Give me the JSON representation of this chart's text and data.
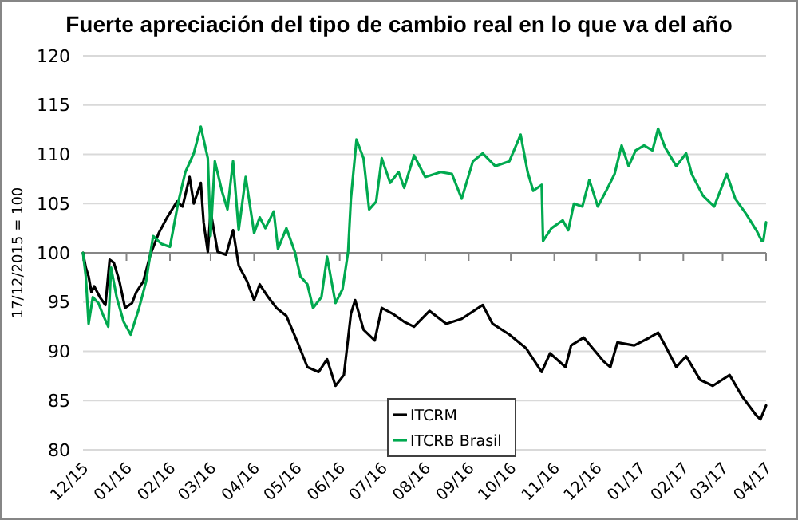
{
  "chart_data": {
    "type": "line",
    "title": "Fuerte apreciación del tipo de cambio real en lo que va del año",
    "ylabel": "17/12/2015 = 100",
    "xlim": [
      "2015-12-17",
      "2017-04-17"
    ],
    "xticks": [
      {
        "value": "2015-12-17",
        "label": "12/15"
      },
      {
        "value": "2016-01-17",
        "label": "01/16"
      },
      {
        "value": "2016-02-17",
        "label": "02/16"
      },
      {
        "value": "2016-03-17",
        "label": "03/16"
      },
      {
        "value": "2016-04-17",
        "label": "04/16"
      },
      {
        "value": "2016-05-17",
        "label": "05/16"
      },
      {
        "value": "2016-06-17",
        "label": "06/16"
      },
      {
        "value": "2016-07-17",
        "label": "07/16"
      },
      {
        "value": "2016-08-17",
        "label": "08/16"
      },
      {
        "value": "2016-09-17",
        "label": "09/16"
      },
      {
        "value": "2016-10-17",
        "label": "10/16"
      },
      {
        "value": "2016-11-17",
        "label": "11/16"
      },
      {
        "value": "2016-12-17",
        "label": "12/16"
      },
      {
        "value": "2017-01-17",
        "label": "01/17"
      },
      {
        "value": "2017-02-17",
        "label": "02/17"
      },
      {
        "value": "2017-03-17",
        "label": "03/17"
      },
      {
        "value": "2017-04-17",
        "label": "04/17"
      }
    ],
    "ylim": [
      80,
      120
    ],
    "yticks": [
      80,
      85,
      90,
      95,
      100,
      105,
      110,
      115,
      120
    ],
    "grid": "y",
    "legend": "bottom",
    "marker": "none",
    "line_style": "solid",
    "ref_lines": [
      {
        "axis": "y",
        "value": 100,
        "color": "#868686"
      }
    ],
    "series": [
      {
        "name": "ITCRM",
        "color": "#000000",
        "x": [
          "2015-12-17",
          "2015-12-19",
          "2015-12-21",
          "2015-12-23",
          "2015-12-25",
          "2015-12-29",
          "2016-01-02",
          "2016-01-05",
          "2016-01-08",
          "2016-01-12",
          "2016-01-16",
          "2016-01-21",
          "2016-01-24",
          "2016-01-29",
          "2016-02-03",
          "2016-02-09",
          "2016-02-15",
          "2016-02-22",
          "2016-02-26",
          "2016-03-02",
          "2016-03-05",
          "2016-03-10",
          "2016-03-12",
          "2016-03-15",
          "2016-03-17",
          "2016-03-22",
          "2016-03-28",
          "2016-04-02",
          "2016-04-06",
          "2016-04-12",
          "2016-04-17",
          "2016-04-21",
          "2016-04-27",
          "2016-05-03",
          "2016-05-10",
          "2016-05-18",
          "2016-05-25",
          "2016-06-02",
          "2016-06-08",
          "2016-06-14",
          "2016-06-20",
          "2016-06-25",
          "2016-06-28",
          "2016-07-04",
          "2016-07-12",
          "2016-07-17",
          "2016-07-25",
          "2016-08-02",
          "2016-08-09",
          "2016-08-20",
          "2016-09-01",
          "2016-09-12",
          "2016-09-27",
          "2016-10-04",
          "2016-10-16",
          "2016-10-28",
          "2016-11-08",
          "2016-11-14",
          "2016-11-25",
          "2016-11-29",
          "2016-12-08",
          "2016-12-22",
          "2016-12-27",
          "2017-01-01",
          "2017-01-13",
          "2017-01-24",
          "2017-01-30",
          "2017-02-04",
          "2017-02-12",
          "2017-02-19",
          "2017-03-01",
          "2017-03-10",
          "2017-03-22",
          "2017-03-31",
          "2017-04-10",
          "2017-04-13",
          "2017-04-17"
        ],
        "values": [
          100,
          98.5,
          97.6,
          96,
          96.6,
          95.5,
          94.7,
          99.3,
          99,
          97.1,
          94.4,
          94.9,
          96,
          97.1,
          99.8,
          102,
          103.6,
          105.2,
          104.7,
          107.7,
          105,
          107.1,
          103.1,
          100.1,
          104.2,
          100.1,
          99.8,
          102.3,
          98.7,
          97.1,
          95.2,
          96.8,
          95.5,
          94.4,
          93.6,
          90.9,
          88.4,
          87.9,
          89.2,
          86.5,
          87.6,
          93.8,
          95.2,
          92.2,
          91.1,
          94.4,
          93.8,
          93,
          92.5,
          94.1,
          92.8,
          93.3,
          94.7,
          92.8,
          91.7,
          90.3,
          87.9,
          89.8,
          88.4,
          90.6,
          91.4,
          89,
          88.4,
          90.9,
          90.6,
          91.4,
          91.9,
          90.6,
          88.4,
          89.5,
          87.1,
          86.5,
          87.6,
          85.4,
          83.5,
          83.1,
          84.5
        ]
      },
      {
        "name": "ITCRB Brasil",
        "color": "#00a94f",
        "x": [
          "2015-12-17",
          "2015-12-19",
          "2015-12-21",
          "2015-12-24",
          "2015-12-28",
          "2015-12-31",
          "2016-01-04",
          "2016-01-06",
          "2016-01-10",
          "2016-01-15",
          "2016-01-20",
          "2016-01-26",
          "2016-01-31",
          "2016-02-05",
          "2016-02-11",
          "2016-02-17",
          "2016-02-23",
          "2016-02-28",
          "2016-03-05",
          "2016-03-10",
          "2016-03-15",
          "2016-03-17",
          "2016-03-20",
          "2016-03-25",
          "2016-03-29",
          "2016-04-02",
          "2016-04-06",
          "2016-04-11",
          "2016-04-17",
          "2016-04-21",
          "2016-04-25",
          "2016-05-01",
          "2016-05-04",
          "2016-05-10",
          "2016-05-16",
          "2016-05-20",
          "2016-05-25",
          "2016-05-29",
          "2016-06-04",
          "2016-06-08",
          "2016-06-14",
          "2016-06-19",
          "2016-06-23",
          "2016-06-25",
          "2016-06-29",
          "2016-07-04",
          "2016-07-08",
          "2016-07-13",
          "2016-07-17",
          "2016-07-23",
          "2016-07-29",
          "2016-08-02",
          "2016-08-09",
          "2016-08-17",
          "2016-08-28",
          "2016-09-05",
          "2016-09-12",
          "2016-09-20",
          "2016-09-27",
          "2016-10-06",
          "2016-10-16",
          "2016-10-24",
          "2016-10-29",
          "2016-11-02",
          "2016-11-08",
          "2016-11-09",
          "2016-11-15",
          "2016-11-23",
          "2016-11-27",
          "2016-12-01",
          "2016-12-07",
          "2016-12-12",
          "2016-12-18",
          "2016-12-24",
          "2016-12-30",
          "2017-01-04",
          "2017-01-09",
          "2017-01-14",
          "2017-01-20",
          "2017-01-26",
          "2017-01-30",
          "2017-02-04",
          "2017-02-12",
          "2017-02-19",
          "2017-02-23",
          "2017-03-03",
          "2017-03-11",
          "2017-03-20",
          "2017-03-26",
          "2017-04-03",
          "2017-04-10",
          "2017-04-14",
          "2017-04-15",
          "2017-04-17"
        ],
        "values": [
          100,
          97.6,
          92.8,
          95.5,
          94.9,
          93.8,
          92.5,
          98.5,
          95.5,
          93,
          91.7,
          94.4,
          97.1,
          101.7,
          100.9,
          100.6,
          105.2,
          108.2,
          110.1,
          112.8,
          109.6,
          101.7,
          109.3,
          106.3,
          104.4,
          109.3,
          102.3,
          107.7,
          102,
          103.6,
          102.5,
          104.2,
          100.4,
          102.5,
          100.1,
          97.6,
          96.8,
          94.4,
          95.5,
          99.6,
          94.9,
          96.3,
          100.1,
          105.5,
          111.5,
          109.6,
          104.4,
          105.2,
          109.6,
          107.1,
          108.2,
          106.6,
          109.9,
          107.7,
          108.2,
          108,
          105.5,
          109.3,
          110.1,
          108.8,
          109.3,
          112,
          108.2,
          106.3,
          106.9,
          101.2,
          102.5,
          103.3,
          102.3,
          105,
          104.7,
          107.4,
          104.7,
          106.3,
          108,
          110.9,
          108.8,
          110.4,
          110.9,
          110.4,
          112.6,
          110.7,
          108.8,
          110.1,
          108,
          105.8,
          104.7,
          108,
          105.5,
          103.9,
          102.3,
          101.2,
          101.2,
          103.1
        ]
      }
    ]
  }
}
